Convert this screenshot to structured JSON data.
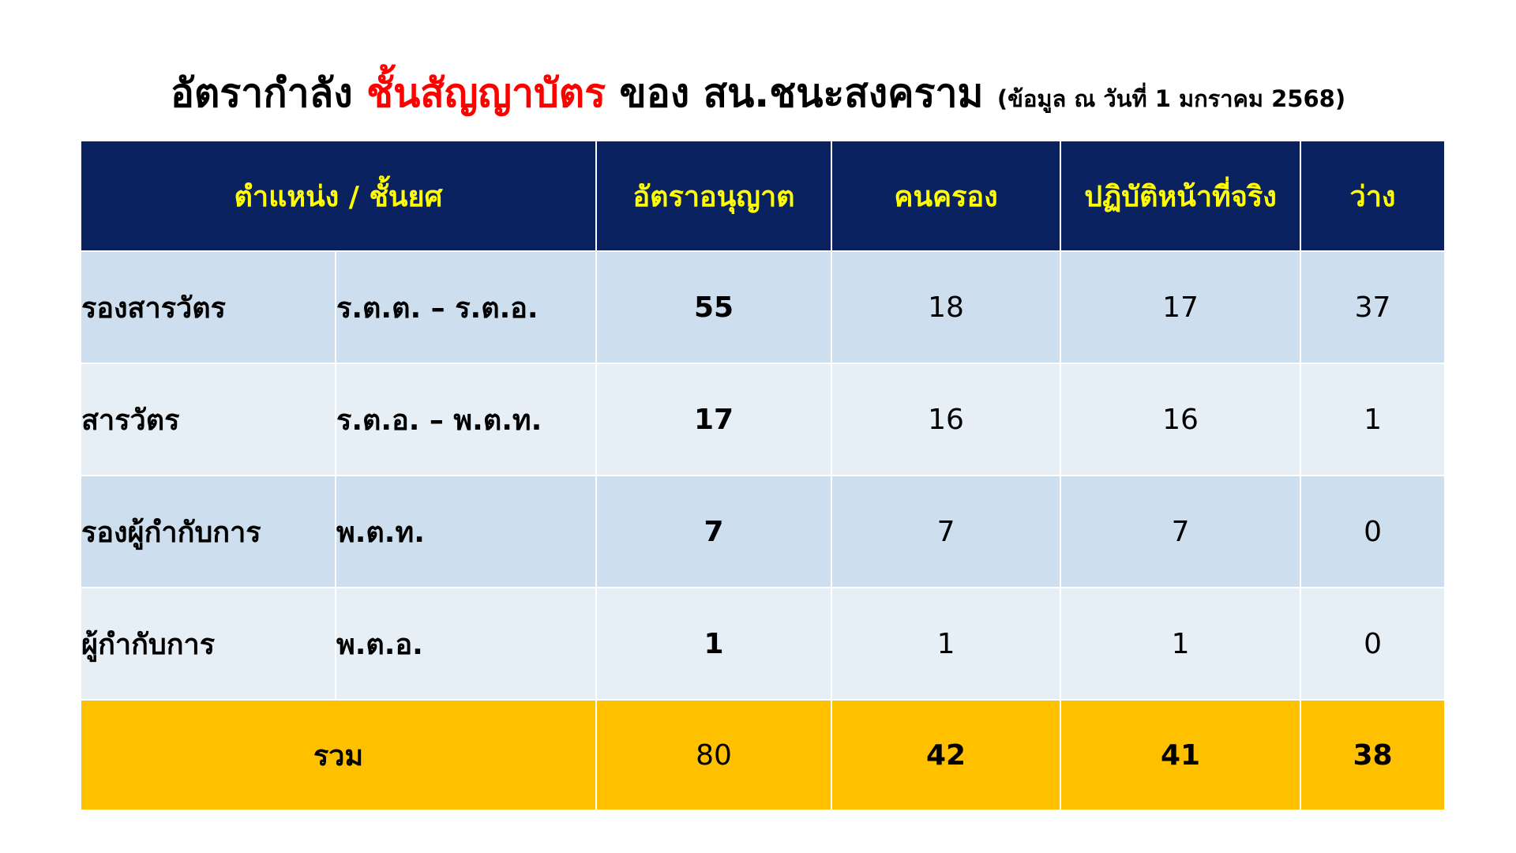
{
  "title": {
    "part1": "อัตรากำลัง ",
    "accent": "ชั้นสัญญาบัตร",
    "part2": " ของ สน.ชนะสงคราม ",
    "note": "(ข้อมูล ณ วันที่ 1 มกราคม 2568)"
  },
  "colors": {
    "header_bg": "#0b2260",
    "header_text": "#ffff00",
    "title_accent": "#ff0000",
    "row_band_a": "#cddfee",
    "row_band_b": "#e6eef6",
    "total_bg": "#ffc000"
  },
  "table": {
    "headers": {
      "position": "ตำแหน่ง / ชั้นยศ",
      "quota": "อัตราอนุญาต",
      "occupied": "คนครอง",
      "active": "ปฏิบัติหน้าที่จริง",
      "vacant": "ว่าง"
    },
    "rows": [
      {
        "position": "รองสารวัตร",
        "rank": "ร.ต.ต. – ร.ต.อ.",
        "quota": "55",
        "occupied": "18",
        "active": "17",
        "vacant": "37"
      },
      {
        "position": "สารวัตร",
        "rank": "ร.ต.อ. – พ.ต.ท.",
        "quota": "17",
        "occupied": "16",
        "active": "16",
        "vacant": "1"
      },
      {
        "position": "รองผู้กำกับการ",
        "rank": "พ.ต.ท.",
        "quota": "7",
        "occupied": "7",
        "active": "7",
        "vacant": "0"
      },
      {
        "position": "ผู้กำกับการ",
        "rank": "พ.ต.อ.",
        "quota": "1",
        "occupied": "1",
        "active": "1",
        "vacant": "0"
      }
    ],
    "total": {
      "label": "รวม",
      "quota": "80",
      "occupied": "42",
      "active": "41",
      "vacant": "38"
    }
  }
}
